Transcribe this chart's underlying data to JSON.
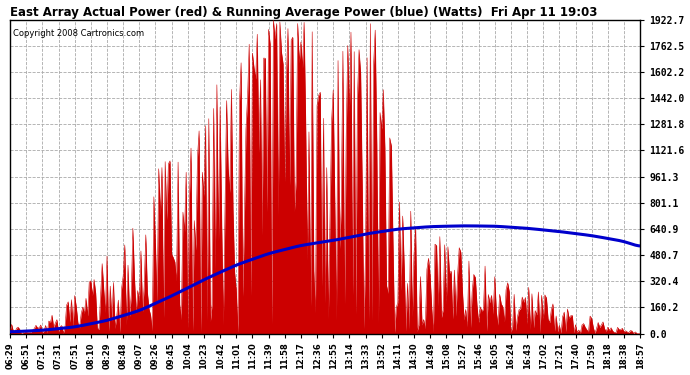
{
  "title": "East Array Actual Power (red) & Running Average Power (blue) (Watts)  Fri Apr 11 19:03",
  "copyright": "Copyright 2008 Cartronics.com",
  "bg_color": "#ffffff",
  "grid_color": "#aaaaaa",
  "actual_color": "#cc0000",
  "avg_color": "#0000cc",
  "y_max": 1922.7,
  "y_min": 0.0,
  "y_ticks": [
    0.0,
    160.2,
    320.4,
    480.7,
    640.9,
    801.1,
    961.3,
    1121.6,
    1281.8,
    1442.0,
    1602.2,
    1762.5,
    1922.7
  ],
  "x_tick_labels": [
    "06:29",
    "06:51",
    "07:12",
    "07:31",
    "07:51",
    "08:10",
    "08:29",
    "08:48",
    "09:07",
    "09:26",
    "09:45",
    "10:04",
    "10:23",
    "10:42",
    "11:01",
    "11:20",
    "11:39",
    "11:58",
    "12:17",
    "12:36",
    "12:55",
    "13:14",
    "13:33",
    "13:52",
    "14:11",
    "14:30",
    "14:49",
    "15:08",
    "15:27",
    "15:46",
    "16:05",
    "16:24",
    "16:43",
    "17:02",
    "17:21",
    "17:40",
    "17:59",
    "18:18",
    "18:38",
    "18:57"
  ],
  "figsize": [
    6.9,
    3.75
  ],
  "dpi": 100,
  "avg_power_points": [
    [
      0,
      10
    ],
    [
      2,
      20
    ],
    [
      4,
      40
    ],
    [
      6,
      80
    ],
    [
      8,
      140
    ],
    [
      10,
      230
    ],
    [
      12,
      330
    ],
    [
      14,
      420
    ],
    [
      16,
      490
    ],
    [
      18,
      540
    ],
    [
      20,
      570
    ],
    [
      22,
      610
    ],
    [
      24,
      640
    ],
    [
      26,
      655
    ],
    [
      28,
      660
    ],
    [
      30,
      658
    ],
    [
      32,
      645
    ],
    [
      34,
      625
    ],
    [
      36,
      600
    ],
    [
      38,
      565
    ],
    [
      39,
      530
    ]
  ]
}
